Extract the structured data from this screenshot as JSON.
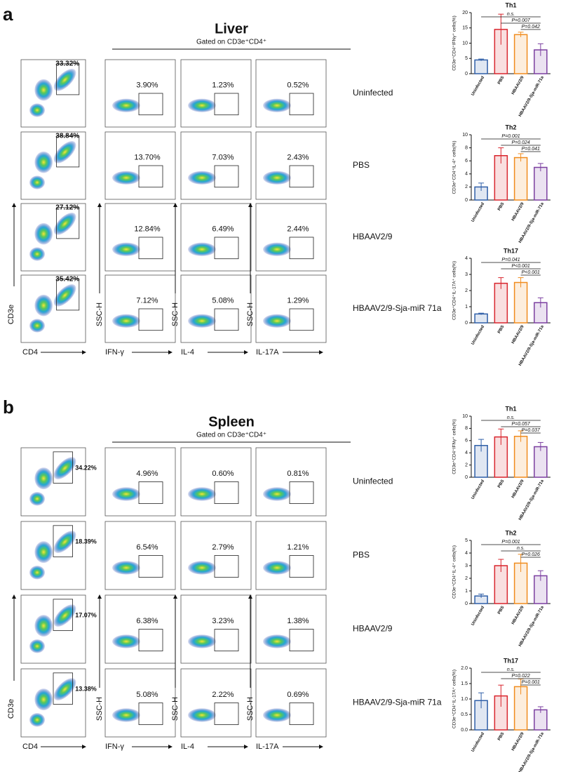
{
  "panels": [
    {
      "label": "a",
      "tissue": "Liver",
      "gate": "Gated on CD3e⁺CD4⁺",
      "axes": {
        "y_first": "CD3e",
        "x_first": "CD4",
        "y_other": "SSC-H",
        "markers": [
          "IFN-γ",
          "IL-4",
          "IL-17A"
        ]
      },
      "rows": [
        {
          "group": "Uninfected",
          "cd4": "33.32%",
          "cytokines": [
            "3.90%",
            "1.23%",
            "0.52%"
          ]
        },
        {
          "group": "PBS",
          "cd4": "38.84%",
          "cytokines": [
            "13.70%",
            "7.03%",
            "2.43%"
          ]
        },
        {
          "group": "HBAAV2/9",
          "cd4": "27.12%",
          "cytokines": [
            "12.84%",
            "6.49%",
            "2.44%"
          ]
        },
        {
          "group": "HBAAV2/9-Sja-miR 71a",
          "cd4": "35.42%",
          "cytokines": [
            "7.12%",
            "5.08%",
            "1.29%"
          ]
        }
      ],
      "charts": [
        {
          "type": "bar",
          "title": "Th1",
          "ylabel": "CD3e⁺CD4⁺IFNγ⁺ cells(%)",
          "categories": [
            "Uninfected",
            "PBS",
            "HBAAV2/9",
            "HBAAV2/9-Sja-miR-71a"
          ],
          "colors": [
            "#2f5fa8",
            "#d9252d",
            "#f08c1e",
            "#7b3fa0"
          ],
          "values": [
            4.5,
            14.5,
            12.8,
            7.8
          ],
          "errors": [
            0.3,
            5,
            0.8,
            2
          ],
          "ylim": [
            0,
            20
          ],
          "yticks": [
            0,
            5,
            10,
            15,
            20
          ],
          "annotations": [
            "n.s.",
            "P=0.007",
            "P=0.042"
          ]
        },
        {
          "type": "bar",
          "title": "Th2",
          "ylabel": "CD3e⁺CD4⁺IL-4⁺ cells(%)",
          "categories": [
            "Uninfected",
            "PBS",
            "HBAAV2/9",
            "HBAAV2/9-Sja-miR-71a"
          ],
          "colors": [
            "#2f5fa8",
            "#d9252d",
            "#f08c1e",
            "#7b3fa0"
          ],
          "values": [
            2.0,
            6.8,
            6.5,
            5.0
          ],
          "errors": [
            0.6,
            1.2,
            0.6,
            0.6
          ],
          "ylim": [
            0,
            10
          ],
          "yticks": [
            0,
            2,
            4,
            6,
            8,
            10
          ],
          "annotations": [
            "P=0.001",
            "P=0.024",
            "P=0.041"
          ]
        },
        {
          "type": "bar",
          "title": "Th17",
          "ylabel": "CD3e⁺CD4⁺IL-17A⁺ cells(%)",
          "categories": [
            "Uninfected",
            "PBS",
            "HBAAV2/9",
            "HBAAV2/9-Sja-miR-71a"
          ],
          "colors": [
            "#2f5fa8",
            "#d9252d",
            "#f08c1e",
            "#7b3fa0"
          ],
          "values": [
            0.55,
            2.45,
            2.5,
            1.25
          ],
          "errors": [
            0.05,
            0.35,
            0.3,
            0.3
          ],
          "ylim": [
            0,
            4
          ],
          "yticks": [
            0,
            1,
            2,
            3,
            4
          ],
          "annotations": [
            "P=0.041",
            "P<0.001",
            "P<0.001"
          ]
        }
      ]
    },
    {
      "label": "b",
      "tissue": "Spleen",
      "gate": "Gated on CD3e⁺CD4⁺",
      "axes": {
        "y_first": "CD3e",
        "x_first": "CD4",
        "y_other": "SSC-H",
        "markers": [
          "IFN-γ",
          "IL-4",
          "IL-17A"
        ]
      },
      "rows": [
        {
          "group": "Uninfected",
          "cd4": "34.22%",
          "cytokines": [
            "4.96%",
            "0.60%",
            "0.81%"
          ]
        },
        {
          "group": "PBS",
          "cd4": "18.39%",
          "cytokines": [
            "6.54%",
            "2.79%",
            "1.21%"
          ]
        },
        {
          "group": "HBAAV2/9",
          "cd4": "17.07%",
          "cytokines": [
            "6.38%",
            "3.23%",
            "1.38%"
          ]
        },
        {
          "group": "HBAAV2/9-Sja-miR 71a",
          "cd4": "13.38%",
          "cytokines": [
            "5.08%",
            "2.22%",
            "0.69%"
          ]
        }
      ],
      "charts": [
        {
          "type": "bar",
          "title": "Th1",
          "ylabel": "CD3e⁺CD4⁺IFNγ⁺ cells(%)",
          "categories": [
            "Uninfected",
            "PBS",
            "HBAAV2/9",
            "HBAAV2/9-Sja-miR-71a"
          ],
          "colors": [
            "#2f5fa8",
            "#d9252d",
            "#f08c1e",
            "#7b3fa0"
          ],
          "values": [
            5.2,
            6.6,
            6.7,
            5.0
          ],
          "errors": [
            1,
            1.3,
            0.9,
            0.7
          ],
          "ylim": [
            0,
            10
          ],
          "yticks": [
            0,
            2,
            4,
            6,
            8,
            10
          ],
          "annotations": [
            "n.s.",
            "P=0.057",
            "P=0.037"
          ]
        },
        {
          "type": "bar",
          "title": "Th2",
          "ylabel": "CD3e⁺CD4⁺IL-4⁺ cells(%)",
          "categories": [
            "Uninfected",
            "PBS",
            "HBAAV2/9",
            "HBAAV2/9-Sja-miR-71a"
          ],
          "colors": [
            "#2f5fa8",
            "#d9252d",
            "#f08c1e",
            "#7b3fa0"
          ],
          "values": [
            0.6,
            3.0,
            3.2,
            2.2
          ],
          "errors": [
            0.15,
            0.5,
            0.7,
            0.4
          ],
          "ylim": [
            0,
            5
          ],
          "yticks": [
            0,
            1,
            2,
            3,
            4,
            5
          ],
          "annotations": [
            "P=0.001",
            "n.s.",
            "P=0.026"
          ]
        },
        {
          "type": "bar",
          "title": "Th17",
          "ylabel": "CD3e⁺CD4⁺IL-17A⁺ cells(%)",
          "categories": [
            "Uninfected",
            "PBS",
            "HBAAV2/9",
            "HBAAV2/9-Sja-miR-71a"
          ],
          "colors": [
            "#2f5fa8",
            "#d9252d",
            "#f08c1e",
            "#7b3fa0"
          ],
          "values": [
            0.95,
            1.1,
            1.4,
            0.65
          ],
          "errors": [
            0.25,
            0.35,
            0.25,
            0.1
          ],
          "ylim": [
            0,
            2
          ],
          "yticks": [
            {
              "value": 0,
              "label": "0.0"
            },
            {
              "value": 0.5,
              "label": "0.5"
            },
            {
              "value": 1,
              "label": "1.0"
            },
            {
              "value": 1.5,
              "label": "1.5"
            },
            {
              "value": 2,
              "label": "2.0"
            }
          ],
          "annotations": [
            "n.s.",
            "P=0.022",
            "P=0.001"
          ]
        }
      ]
    }
  ]
}
